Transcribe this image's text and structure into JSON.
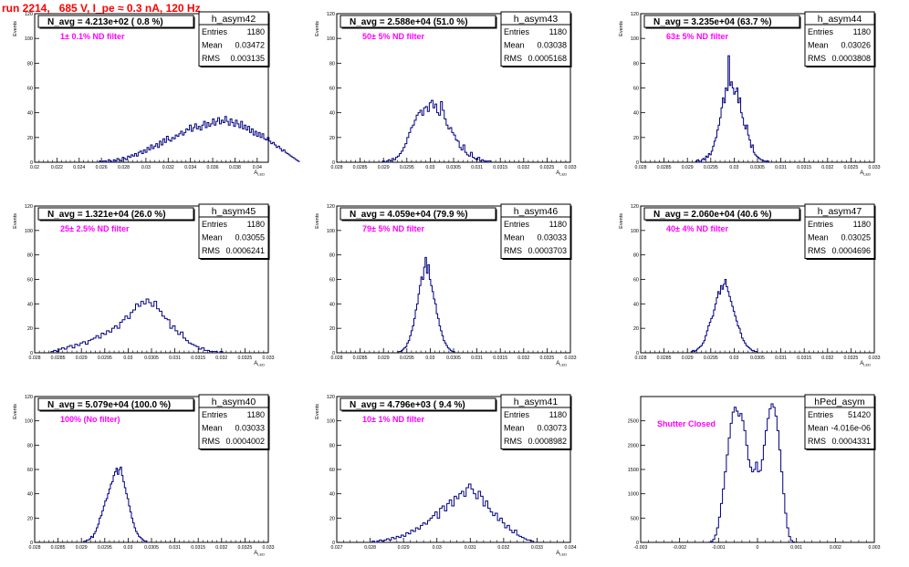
{
  "header": {
    "title": "run 2214,   685 V, I_pe ≈ 0.3 nA, 120 Hz",
    "title_color": "#ff0000"
  },
  "colors": {
    "hist_line": "#000080",
    "annotation": "#ff00ff",
    "frame": "#000000",
    "background": "#ffffff"
  },
  "chart_data": [
    {
      "type": "bar",
      "name": "h_asym42",
      "title": "N_avg = 4.213e+02 ( 0.8 %)",
      "annotation": "1± 0.1% ND filter",
      "stats": [
        [
          "Entries",
          "1180"
        ],
        [
          "Mean",
          "0.03472"
        ],
        [
          "RMS",
          "0.003135"
        ]
      ],
      "xlabel": "A_LED",
      "ylabel": "Events",
      "xlim": [
        0.02,
        0.041
      ],
      "ylim": [
        0,
        120
      ],
      "xticks": [
        "0.02",
        "0.022",
        "0.024",
        "0.026",
        "0.028",
        "0.03",
        "0.032",
        "0.034",
        "0.036",
        "0.038",
        "0.04"
      ],
      "yticks": [
        "0",
        "20",
        "40",
        "60",
        "80",
        "100",
        "120"
      ],
      "grid": false,
      "bins": {
        "start": 0.0258,
        "width": 0.000159,
        "values": [
          1,
          0,
          1,
          1,
          0,
          2,
          1,
          0,
          2,
          1,
          3,
          2,
          1,
          4,
          3,
          2,
          5,
          4,
          6,
          5,
          7,
          5,
          8,
          9,
          7,
          10,
          8,
          12,
          10,
          14,
          11,
          13,
          15,
          12,
          17,
          14,
          19,
          16,
          21,
          18,
          17,
          20,
          19,
          22,
          21,
          23,
          25,
          22,
          24,
          27,
          26,
          30,
          25,
          28,
          31,
          27,
          29,
          26,
          30,
          33,
          28,
          32,
          29,
          31,
          35,
          30,
          33,
          36,
          31,
          34,
          32,
          37,
          33,
          30,
          35,
          32,
          29,
          34,
          31,
          28,
          33,
          27,
          30,
          26,
          29,
          24,
          27,
          22,
          25,
          21,
          24,
          20,
          23,
          19,
          18,
          20,
          17,
          15,
          16,
          14,
          12,
          13,
          11,
          9,
          10,
          8,
          7,
          6,
          5,
          4,
          3,
          2,
          1
        ]
      }
    },
    {
      "type": "bar",
      "name": "h_asym43",
      "title": "N_avg = 2.588e+04 (51.0 %)",
      "annotation": "50± 5% ND filter",
      "stats": [
        [
          "Entries",
          "1180"
        ],
        [
          "Mean",
          "0.03038"
        ],
        [
          "RMS",
          "0.0005168"
        ]
      ],
      "xlabel": "A_LED",
      "ylabel": "Events",
      "xlim": [
        0.028,
        0.033
      ],
      "ylim": [
        0,
        120
      ],
      "xticks": [
        "0.028",
        "0.0285",
        "0.029",
        "0.0295",
        "0.03",
        "0.0305",
        "0.031",
        "0.0315",
        "0.032",
        "0.0325",
        "0.033"
      ],
      "yticks": [
        "0",
        "20",
        "40",
        "60",
        "80",
        "100",
        "120"
      ],
      "grid": false,
      "bins": {
        "start": 0.02898,
        "width": 4e-05,
        "values": [
          1,
          0,
          1,
          2,
          1,
          3,
          2,
          4,
          5,
          7,
          9,
          12,
          15,
          20,
          24,
          28,
          30,
          34,
          38,
          40,
          42,
          38,
          44,
          45,
          41,
          48,
          50,
          44,
          47,
          40,
          38,
          49,
          42,
          35,
          30,
          27,
          28,
          24,
          22,
          18,
          17,
          12,
          10,
          14,
          8,
          6,
          5,
          8,
          4,
          3,
          2,
          4,
          1,
          2,
          1,
          0,
          1,
          1
        ]
      }
    },
    {
      "type": "bar",
      "name": "h_asym44",
      "title": "N_avg = 3.235e+04 (63.7 %)",
      "annotation": "63± 5% ND filter",
      "stats": [
        [
          "Entries",
          "1180"
        ],
        [
          "Mean",
          "0.03026"
        ],
        [
          "RMS",
          "0.0003808"
        ]
      ],
      "xlabel": "A_LED",
      "ylabel": "Events",
      "xlim": [
        0.028,
        0.033
      ],
      "ylim": [
        0,
        120
      ],
      "xticks": [
        "0.028",
        "0.0285",
        "0.029",
        "0.0295",
        "0.03",
        "0.0305",
        "0.031",
        "0.0315",
        "0.032",
        "0.0325",
        "0.033"
      ],
      "yticks": [
        "0",
        "20",
        "40",
        "60",
        "80",
        "100",
        "120"
      ],
      "grid": false,
      "bins": {
        "start": 0.02918,
        "width": 3e-05,
        "values": [
          1,
          2,
          1,
          0,
          2,
          3,
          2,
          5,
          4,
          7,
          6,
          9,
          13,
          17,
          20,
          26,
          30,
          36,
          44,
          52,
          48,
          60,
          58,
          86,
          62,
          65,
          60,
          55,
          57,
          60,
          48,
          52,
          40,
          36,
          30,
          27,
          30,
          22,
          18,
          12,
          14,
          8,
          6,
          5,
          4,
          3,
          2,
          2,
          1,
          1,
          0,
          1
        ]
      }
    },
    {
      "type": "bar",
      "name": "h_asym45",
      "title": "N_avg = 1.321e+04 (26.0 %)",
      "annotation": "25± 2.5% ND filter",
      "stats": [
        [
          "Entries",
          "1180"
        ],
        [
          "Mean",
          "0.03055"
        ],
        [
          "RMS",
          "0.0006241"
        ]
      ],
      "xlabel": "A_LED",
      "ylabel": "Events",
      "xlim": [
        0.028,
        0.033
      ],
      "ylim": [
        0,
        120
      ],
      "xticks": [
        "0.028",
        "0.0285",
        "0.029",
        "0.0295",
        "0.03",
        "0.0305",
        "0.031",
        "0.0315",
        "0.032",
        "0.0325",
        "0.033"
      ],
      "yticks": [
        "0",
        "20",
        "40",
        "60",
        "80",
        "100",
        "120"
      ],
      "grid": false,
      "bins": {
        "start": 0.02835,
        "width": 5.65e-05,
        "values": [
          1,
          2,
          1,
          3,
          4,
          3,
          5,
          6,
          4,
          7,
          6,
          8,
          9,
          7,
          10,
          11,
          12,
          14,
          12,
          16,
          15,
          18,
          17,
          20,
          22,
          20,
          25,
          27,
          30,
          28,
          33,
          35,
          40,
          38,
          42,
          40,
          44,
          41,
          38,
          42,
          36,
          34,
          30,
          28,
          27,
          20,
          22,
          18,
          15,
          17,
          12,
          10,
          8,
          7,
          6,
          5,
          3,
          4,
          2,
          2,
          1,
          1,
          1,
          0,
          1
        ]
      }
    },
    {
      "type": "bar",
      "name": "h_asym46",
      "title": "N_avg = 4.059e+04 (79.9 %)",
      "annotation": "79± 5% ND filter",
      "stats": [
        [
          "Entries",
          "1180"
        ],
        [
          "Mean",
          "0.03033"
        ],
        [
          "RMS",
          "0.0003703"
        ]
      ],
      "xlabel": "A_LED",
      "ylabel": "Events",
      "xlim": [
        0.028,
        0.033
      ],
      "ylim": [
        0,
        120
      ],
      "xticks": [
        "0.028",
        "0.0285",
        "0.029",
        "0.0295",
        "0.03",
        "0.0305",
        "0.031",
        "0.0315",
        "0.032",
        "0.0325",
        "0.033"
      ],
      "yticks": [
        "0",
        "20",
        "40",
        "60",
        "80",
        "100",
        "120"
      ],
      "grid": false,
      "bins": {
        "start": 0.02932,
        "width": 3e-05,
        "values": [
          1,
          1,
          2,
          3,
          4,
          5,
          8,
          10,
          14,
          18,
          22,
          28,
          35,
          40,
          48,
          55,
          62,
          60,
          70,
          78,
          65,
          72,
          60,
          55,
          50,
          44,
          40,
          32,
          28,
          22,
          18,
          14,
          10,
          8,
          6,
          4,
          3,
          2,
          1,
          1
        ]
      }
    },
    {
      "type": "bar",
      "name": "h_asym47",
      "title": "N_avg = 2.060e+04 (40.6 %)",
      "annotation": "40± 4% ND filter",
      "stats": [
        [
          "Entries",
          "1180"
        ],
        [
          "Mean",
          "0.03025"
        ],
        [
          "RMS",
          "0.0004696"
        ]
      ],
      "xlabel": "A_LED",
      "ylabel": "Events",
      "xlim": [
        0.028,
        0.033
      ],
      "ylim": [
        0,
        120
      ],
      "xticks": [
        "0.028",
        "0.0285",
        "0.029",
        "0.0295",
        "0.03",
        "0.0305",
        "0.031",
        "0.0315",
        "0.032",
        "0.0325",
        "0.033"
      ],
      "yticks": [
        "0",
        "20",
        "40",
        "60",
        "80",
        "100",
        "120"
      ],
      "grid": false,
      "bins": {
        "start": 0.02908,
        "width": 3e-05,
        "values": [
          1,
          2,
          1,
          2,
          3,
          4,
          5,
          6,
          8,
          10,
          14,
          18,
          22,
          25,
          28,
          30,
          35,
          40,
          45,
          50,
          48,
          55,
          52,
          56,
          60,
          54,
          50,
          46,
          42,
          38,
          34,
          30,
          26,
          22,
          20,
          16,
          12,
          10,
          8,
          6,
          5,
          4,
          3,
          2,
          2,
          1,
          1
        ]
      }
    },
    {
      "type": "bar",
      "name": "h_asym40",
      "title": "N_avg = 5.079e+04 (100.0 %)",
      "annotation": "100% (No filter)",
      "stats": [
        [
          "Entries",
          "1180"
        ],
        [
          "Mean",
          "0.03033"
        ],
        [
          "RMS",
          "0.0004002"
        ]
      ],
      "xlabel": "A_LED",
      "ylabel": "Events",
      "xlim": [
        0.028,
        0.033
      ],
      "ylim": [
        0,
        120
      ],
      "xticks": [
        "0.028",
        "0.0285",
        "0.029",
        "0.0295",
        "0.03",
        "0.0305",
        "0.031",
        "0.0315",
        "0.032",
        "0.0325",
        "0.033"
      ],
      "yticks": [
        "0",
        "20",
        "40",
        "60",
        "80",
        "100",
        "120"
      ],
      "grid": false,
      "bins": {
        "start": 0.02905,
        "width": 3e-05,
        "values": [
          1,
          1,
          2,
          2,
          3,
          5,
          4,
          7,
          9,
          12,
          15,
          20,
          22,
          26,
          30,
          34,
          36,
          40,
          44,
          48,
          50,
          55,
          58,
          61,
          56,
          60,
          62,
          55,
          50,
          45,
          40,
          36,
          30,
          25,
          20,
          16,
          12,
          9,
          7,
          5,
          4,
          3,
          2,
          1,
          1
        ]
      }
    },
    {
      "type": "bar",
      "name": "h_asym41",
      "title": "N_avg = 4.796e+03 ( 9.4 %)",
      "annotation": "10± 1% ND filter",
      "stats": [
        [
          "Entries",
          "1180"
        ],
        [
          "Mean",
          "0.03073"
        ],
        [
          "RMS",
          "0.0008982"
        ]
      ],
      "xlabel": "A_LED",
      "ylabel": "Events",
      "xlim": [
        0.027,
        0.034
      ],
      "ylim": [
        0,
        120
      ],
      "xticks": [
        "0.027",
        "0.028",
        "0.029",
        "0.03",
        "0.031",
        "0.032",
        "0.033",
        "0.034"
      ],
      "yticks": [
        "0",
        "20",
        "40",
        "60",
        "80",
        "100",
        "120"
      ],
      "grid": false,
      "bins": {
        "start": 0.02806,
        "width": 7.22e-05,
        "values": [
          1,
          0,
          1,
          2,
          1,
          2,
          3,
          2,
          4,
          3,
          5,
          4,
          6,
          5,
          8,
          7,
          10,
          9,
          12,
          11,
          14,
          16,
          15,
          18,
          20,
          22,
          25,
          20,
          28,
          30,
          26,
          32,
          35,
          30,
          38,
          36,
          40,
          42,
          38,
          45,
          48,
          44,
          40,
          36,
          42,
          38,
          30,
          34,
          28,
          25,
          22,
          24,
          18,
          20,
          16,
          12,
          14,
          10,
          8,
          10,
          6,
          5,
          4,
          3,
          2,
          2,
          1
        ]
      }
    },
    {
      "type": "bar",
      "name": "hPed_asym",
      "title": "",
      "annotation": "Shutter Closed",
      "stats": [
        [
          "Entries",
          "51420"
        ],
        [
          "Mean",
          "-4.016e-06"
        ],
        [
          "RMS",
          "0.0004331"
        ]
      ],
      "xlabel": "",
      "ylabel": "",
      "xlim": [
        -0.003,
        0.003
      ],
      "ylim": [
        0,
        3000
      ],
      "xticks": [
        "-0.003",
        "-0.002",
        "-0.001",
        "0",
        "0.001",
        "0.002",
        "0.003"
      ],
      "yticks": [
        "0",
        "500",
        "1000",
        "1500",
        "2000",
        "2500"
      ],
      "grid": false,
      "bins": {
        "start": -0.00125,
        "width": 5e-05,
        "values": [
          5,
          20,
          60,
          150,
          300,
          520,
          800,
          1100,
          1450,
          1800,
          2150,
          2450,
          2680,
          2780,
          2700,
          2600,
          2650,
          2500,
          2300,
          2000,
          1700,
          1550,
          1450,
          1500,
          1650,
          1450,
          1480,
          1700,
          2000,
          2300,
          2550,
          2750,
          2850,
          2780,
          2600,
          2300,
          1900,
          1450,
          1000,
          600,
          300,
          120,
          40,
          10
        ]
      }
    }
  ]
}
